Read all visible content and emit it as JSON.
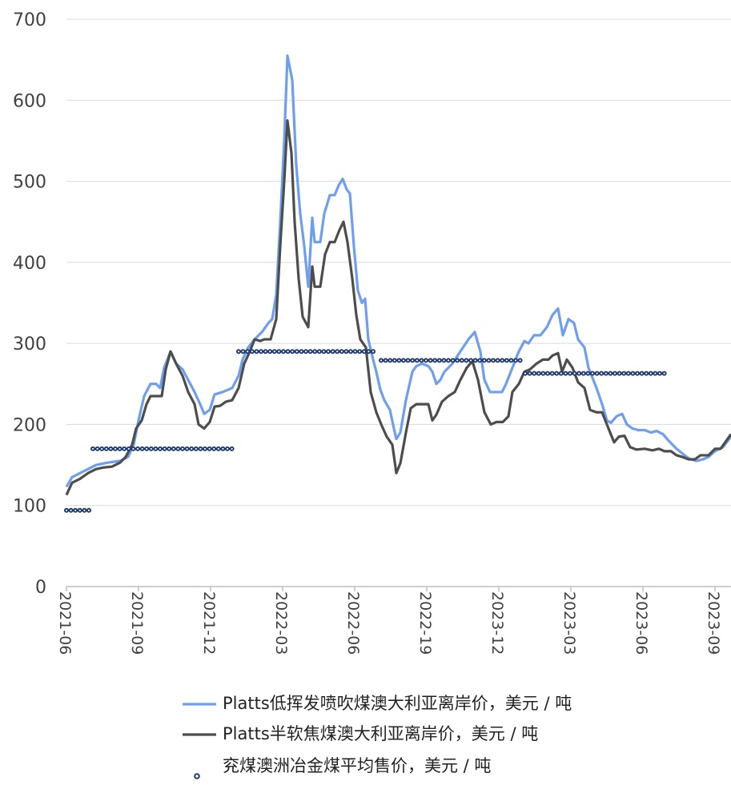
{
  "chart_data": {
    "type": "line",
    "xlim": [
      0,
      830
    ],
    "xticks": [
      {
        "value": 0,
        "label": "2021-06"
      },
      {
        "value": 90,
        "label": "2021-09"
      },
      {
        "value": 180,
        "label": "2021-12"
      },
      {
        "value": 270,
        "label": "2022-03"
      },
      {
        "value": 360,
        "label": "2022-06"
      },
      {
        "value": 450,
        "label": "2022-19"
      },
      {
        "value": 540,
        "label": "2023-12"
      },
      {
        "value": 630,
        "label": "2023-03"
      },
      {
        "value": 720,
        "label": "2023-06"
      },
      {
        "value": 810,
        "label": "2023-09"
      }
    ],
    "ylim": [
      0,
      700
    ],
    "yticks": [
      0,
      100,
      200,
      300,
      400,
      500,
      600,
      700
    ],
    "grid": true,
    "legend": "bottom",
    "series": [
      {
        "name": "Platts低挥发喷吹煤澳大利亚离岸价，美元 / 吨",
        "color": "#6d9ef0",
        "x": [
          0,
          7,
          17,
          27,
          37,
          52,
          67,
          77,
          84,
          90,
          97,
          105,
          112,
          117,
          122,
          130,
          137,
          145,
          152,
          160,
          167,
          172,
          179,
          185,
          195,
          207,
          215,
          220,
          227,
          235,
          245,
          252,
          257,
          262,
          267,
          272,
          276,
          282,
          287,
          292,
          297,
          302,
          307,
          310,
          317,
          322,
          329,
          335,
          340,
          345,
          350,
          354,
          359,
          364,
          369,
          373,
          377,
          383,
          387,
          392,
          397,
          404,
          409,
          412,
          417,
          424,
          432,
          437,
          444,
          452,
          457,
          462,
          467,
          472,
          482,
          492,
          502,
          510,
          517,
          522,
          529,
          537,
          544,
          549,
          557,
          565,
          572,
          577,
          584,
          592,
          600,
          607,
          614,
          620,
          627,
          634,
          639,
          647,
          652,
          662,
          669,
          675,
          680,
          687,
          694,
          700,
          707,
          714,
          722,
          730,
          737,
          745,
          752,
          762,
          772,
          779,
          787,
          795,
          802,
          810,
          820,
          830
        ],
        "values": [
          123,
          135,
          140,
          145,
          150,
          153,
          155,
          160,
          175,
          205,
          235,
          250,
          250,
          245,
          270,
          290,
          275,
          268,
          255,
          240,
          225,
          213,
          218,
          237,
          240,
          245,
          260,
          280,
          295,
          305,
          315,
          325,
          330,
          360,
          450,
          550,
          655,
          625,
          520,
          460,
          420,
          370,
          455,
          425,
          425,
          460,
          483,
          483,
          495,
          503,
          490,
          485,
          420,
          365,
          350,
          355,
          305,
          280,
          265,
          243,
          230,
          218,
          195,
          182,
          190,
          230,
          265,
          272,
          275,
          272,
          265,
          250,
          255,
          265,
          275,
          290,
          305,
          314,
          290,
          255,
          240,
          240,
          240,
          250,
          270,
          290,
          303,
          300,
          310,
          310,
          320,
          335,
          343,
          310,
          330,
          325,
          305,
          295,
          270,
          245,
          225,
          205,
          202,
          210,
          213,
          200,
          195,
          193,
          193,
          190,
          192,
          188,
          180,
          170,
          162,
          157,
          155,
          157,
          160,
          167,
          172,
          185
        ]
      },
      {
        "name": "Platts半软焦煤澳大利亚离岸价，美元 / 吨",
        "color": "#4d4d4d",
        "x": [
          0,
          7,
          17,
          27,
          37,
          47,
          57,
          67,
          74,
          82,
          87,
          94,
          100,
          105,
          112,
          119,
          124,
          130,
          137,
          145,
          152,
          160,
          165,
          172,
          179,
          185,
          192,
          199,
          207,
          215,
          222,
          229,
          235,
          242,
          247,
          255,
          262,
          267,
          272,
          276,
          281,
          285,
          290,
          295,
          302,
          307,
          310,
          317,
          323,
          329,
          335,
          341,
          346,
          351,
          357,
          362,
          367,
          374,
          380,
          387,
          394,
          400,
          407,
          412,
          417,
          424,
          430,
          437,
          444,
          452,
          457,
          462,
          469,
          477,
          485,
          492,
          500,
          507,
          514,
          522,
          530,
          537,
          545,
          552,
          557,
          565,
          572,
          579,
          587,
          595,
          602,
          607,
          614,
          619,
          625,
          632,
          639,
          647,
          654,
          662,
          669,
          677,
          684,
          690,
          697,
          704,
          712,
          722,
          732,
          740,
          747,
          755,
          762,
          769,
          777,
          785,
          792,
          802,
          810,
          817,
          830
        ],
        "values": [
          113,
          128,
          133,
          140,
          145,
          147,
          148,
          153,
          160,
          175,
          195,
          205,
          225,
          235,
          235,
          235,
          268,
          290,
          275,
          260,
          240,
          225,
          200,
          195,
          203,
          222,
          223,
          228,
          230,
          245,
          275,
          290,
          305,
          303,
          305,
          305,
          330,
          420,
          500,
          575,
          535,
          450,
          380,
          333,
          320,
          395,
          370,
          370,
          410,
          425,
          425,
          440,
          450,
          425,
          380,
          335,
          305,
          295,
          240,
          215,
          198,
          185,
          175,
          140,
          152,
          190,
          220,
          225,
          225,
          225,
          205,
          212,
          228,
          235,
          240,
          255,
          270,
          278,
          255,
          215,
          200,
          203,
          203,
          210,
          240,
          250,
          265,
          268,
          275,
          280,
          280,
          285,
          288,
          265,
          280,
          270,
          252,
          245,
          218,
          215,
          215,
          195,
          178,
          185,
          186,
          172,
          169,
          170,
          168,
          170,
          167,
          167,
          162,
          160,
          157,
          157,
          162,
          162,
          170,
          170,
          188
        ]
      },
      {
        "name": "兖煤澳洲冶金煤平均售价，美元 / 吨",
        "color": "#1f3a6e",
        "type": "step-dots",
        "segments": [
          {
            "x": [
              0,
              29
            ],
            "value": 94
          },
          {
            "x": [
              33,
              209
            ],
            "value": 170
          },
          {
            "x": [
              215,
              388
            ],
            "value": 290
          },
          {
            "x": [
              393,
              568
            ],
            "value": 279
          },
          {
            "x": [
              573,
              747
            ],
            "value": 263
          }
        ]
      }
    ]
  }
}
